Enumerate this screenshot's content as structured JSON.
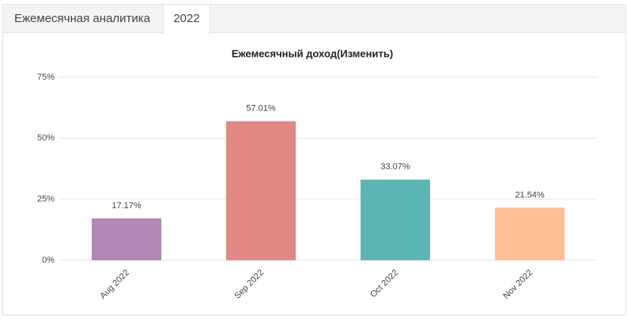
{
  "tabs": [
    "Ежемесячная аналитика",
    "2022"
  ],
  "chart_data": {
    "type": "bar",
    "title": "Ежемесячный доход(Изменить)",
    "categories": [
      "Aug 2022",
      "Sep 2022",
      "Oct 2022",
      "Nov 2022"
    ],
    "values": [
      17.17,
      57.01,
      33.07,
      21.54
    ],
    "value_labels": [
      "17.17%",
      "57.01%",
      "33.07%",
      "21.54%"
    ],
    "colors": [
      "#b386b5",
      "#e08884",
      "#5db5b3",
      "#ffbf96"
    ],
    "ylim": [
      0,
      75
    ],
    "yticks": [
      {
        "value": 0,
        "label": "0%"
      },
      {
        "value": 25,
        "label": "25%"
      },
      {
        "value": 50,
        "label": "50%"
      },
      {
        "value": 75,
        "label": "75%"
      }
    ],
    "grid": true
  }
}
